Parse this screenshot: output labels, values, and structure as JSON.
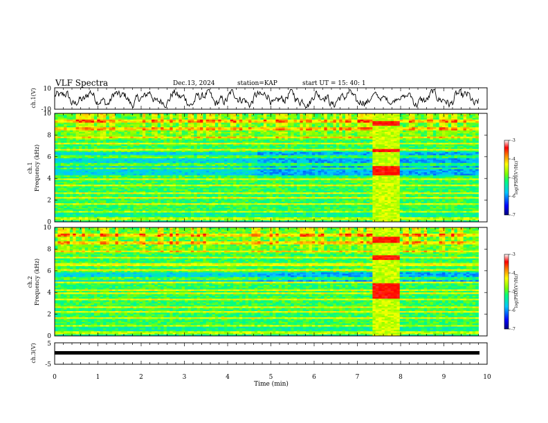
{
  "header": {
    "title": "VLF Spectra",
    "date": "Dec.13, 2024",
    "station": "station=KAP",
    "start": "start UT =   15: 40: 1"
  },
  "chart_data": [
    {
      "type": "line",
      "name": "ch1-waveform",
      "ylabel": "ch.1(V)",
      "ylim": [
        -10,
        10
      ],
      "yticks": [
        "10",
        "-10"
      ],
      "xlim": [
        0,
        10
      ],
      "grid": false,
      "description_values": {
        "x_start": 0,
        "x_end": 9.8,
        "y_min_approx": -8,
        "y_max_approx": 8
      }
    },
    {
      "type": "heatmap",
      "name": "ch1-spectrogram",
      "ylabel_line1": "ch.1",
      "ylabel_line2": "Frequency (kHz)",
      "xlim": [
        0,
        9.8
      ],
      "ylim": [
        0,
        10
      ],
      "yticks": [
        "0",
        "2",
        "4",
        "6",
        "8",
        "10"
      ],
      "quiet_band_khz": [
        4.1,
        6.6
      ],
      "event_interval_min": [
        7.35,
        7.95
      ],
      "event_bands_khz": [
        [
          4.3,
          5.2
        ],
        [
          6.5,
          6.7
        ],
        [
          8.9,
          9.3
        ]
      ],
      "colorbar": {
        "label": "log(PSD)(V²/Hz)",
        "range": [
          -7,
          -3
        ],
        "ticks": [
          "-3",
          "-4",
          "-5",
          "-6",
          "-7"
        ]
      }
    },
    {
      "type": "heatmap",
      "name": "ch2-spectrogram",
      "ylabel_line1": "ch.2",
      "ylabel_line2": "Frequency (kHz)",
      "xlim": [
        0,
        9.8
      ],
      "ylim": [
        0,
        10
      ],
      "yticks": [
        "0",
        "2",
        "4",
        "6",
        "8",
        "10"
      ],
      "quiet_band_khz": [
        5.0,
        6.0
      ],
      "event_interval_min": [
        7.35,
        7.95
      ],
      "event_bands_khz": [
        [
          8.6,
          9.2
        ],
        [
          7.0,
          7.4
        ],
        [
          3.5,
          4.8
        ]
      ],
      "colorbar": {
        "label": "log(PSD)(V²/Hz)",
        "range": [
          -7,
          -3
        ],
        "ticks": [
          "-3",
          "-4",
          "-5",
          "-6",
          "-7"
        ]
      }
    },
    {
      "type": "line",
      "name": "ch3-signal",
      "ylabel": "ch.3(V)",
      "ylim": [
        -5,
        5
      ],
      "yticks": [
        "5",
        "-5"
      ],
      "values": [
        [
          0,
          -1
        ],
        [
          9.8,
          -1
        ]
      ],
      "xlim": [
        0,
        10
      ],
      "grid": false
    }
  ],
  "xaxis": {
    "label": "Time (min)",
    "ticks": [
      "0",
      "1",
      "2",
      "3",
      "4",
      "5",
      "6",
      "7",
      "8",
      "9",
      "10"
    ],
    "range": [
      0,
      10
    ]
  },
  "colors": {
    "scale": [
      "#00007f",
      "#0000ff",
      "#0080ff",
      "#00ffff",
      "#00ff80",
      "#80ff00",
      "#ffff00",
      "#ff8000",
      "#ff0000",
      "#ffffff"
    ]
  }
}
